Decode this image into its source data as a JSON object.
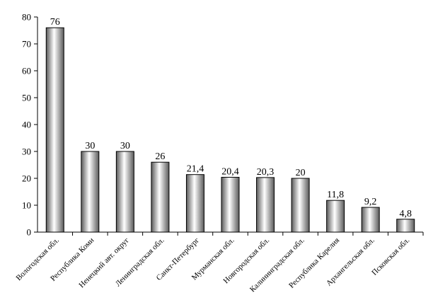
{
  "chart_data": {
    "type": "bar",
    "title": "",
    "xlabel": "",
    "ylabel": "",
    "ylim": [
      0,
      80
    ],
    "yticks": [
      0,
      10,
      20,
      30,
      40,
      50,
      60,
      70,
      80
    ],
    "grid": false,
    "categories": [
      "Вологодская обл.",
      "Республика Коми",
      "Ненецкий авт. округ",
      "Ленинградская обл.",
      "Санкт-Петербург",
      "Мурманская обл.",
      "Новгородская обл.",
      "Калининградская обл.",
      "Республика Карелия",
      "Архангельская обл.",
      "Псковская обл."
    ],
    "values": [
      76,
      30,
      30,
      26,
      21.4,
      20.4,
      20.3,
      20,
      11.8,
      9.2,
      4.8
    ],
    "value_labels": [
      "76",
      "30",
      "30",
      "26",
      "21,4",
      "20,4",
      "20,3",
      "20",
      "11,8",
      "9,2",
      "4,8"
    ],
    "colors": {
      "bar_dark": "#5a5a5a",
      "bar_light": "#ffffff",
      "axis": "#000000"
    }
  }
}
